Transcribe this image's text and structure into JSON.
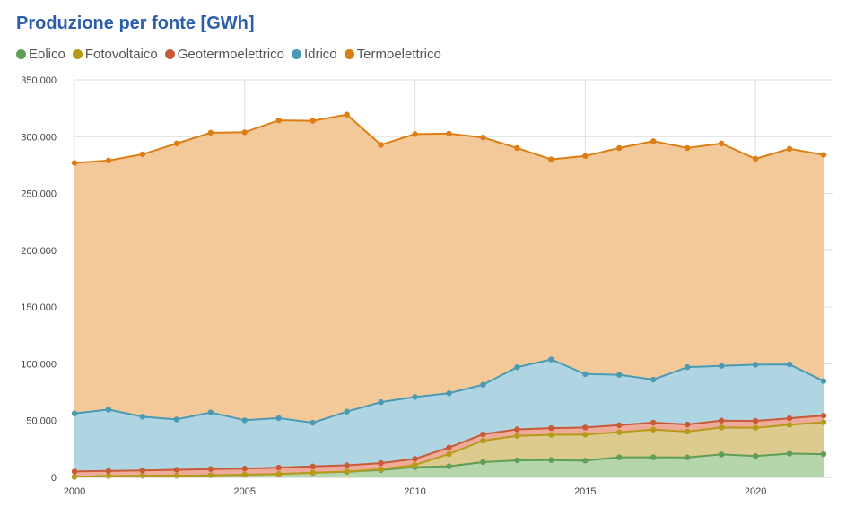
{
  "chart_data": {
    "type": "area",
    "stacked": true,
    "title": "Produzione per fonte [GWh]",
    "xlabel": "",
    "ylabel": "",
    "ylim": [
      0,
      350000
    ],
    "yticks": [
      "0",
      "50,000",
      "100,000",
      "150,000",
      "200,000",
      "250,000",
      "300,000",
      "350,000"
    ],
    "ytick_values": [
      0,
      50000,
      100000,
      150000,
      200000,
      250000,
      300000,
      350000
    ],
    "xlim": [
      2000,
      2022
    ],
    "xticks": [
      "2000",
      "2005",
      "2010",
      "2015",
      "2020"
    ],
    "xtick_values": [
      2000,
      2005,
      2010,
      2015,
      2020
    ],
    "grid": true,
    "legend_position": "top-left",
    "x": [
      2000,
      2001,
      2002,
      2003,
      2004,
      2005,
      2006,
      2007,
      2008,
      2009,
      2010,
      2011,
      2012,
      2013,
      2014,
      2015,
      2016,
      2017,
      2018,
      2019,
      2020,
      2021,
      2022
    ],
    "series": [
      {
        "name": "Eolico",
        "line_color": "#5e9e57",
        "fill_color": "#b5d5ab",
        "cumulative": [
          500,
          1200,
          1400,
          1400,
          1800,
          2300,
          3000,
          4000,
          4900,
          6500,
          9000,
          9800,
          13400,
          15000,
          15200,
          14800,
          17700,
          17700,
          17600,
          20200,
          18800,
          20900,
          20500
        ]
      },
      {
        "name": "Fotovoltaico",
        "line_color": "#b89a19",
        "fill_color": "#dcca8e",
        "cumulative": [
          500,
          1200,
          1400,
          1400,
          1800,
          2300,
          3000,
          4000,
          5100,
          7200,
          10900,
          20600,
          32400,
          36600,
          37500,
          37700,
          39800,
          42100,
          40400,
          43900,
          43700,
          46300,
          48500
        ]
      },
      {
        "name": "Geotermoelettrico",
        "line_color": "#c95a38",
        "fill_color": "#eeab9a",
        "cumulative": [
          5200,
          5700,
          6100,
          6700,
          7300,
          7700,
          8600,
          9600,
          10700,
          12600,
          16300,
          26300,
          38000,
          42300,
          43400,
          43900,
          46000,
          48200,
          46600,
          50000,
          49700,
          52100,
          54400
        ]
      },
      {
        "name": "Idrico",
        "line_color": "#4b9ab3",
        "fill_color": "#afd5e3",
        "cumulative": [
          56300,
          59700,
          53400,
          51000,
          57200,
          50300,
          52200,
          48100,
          57900,
          66300,
          70800,
          74100,
          81600,
          97000,
          103800,
          91000,
          90400,
          86100,
          97100,
          98200,
          99200,
          99500,
          84800
        ]
      },
      {
        "name": "Termoelettrico",
        "line_color": "#dc7e14",
        "fill_color": "#f3c999",
        "cumulative": [
          276900,
          279000,
          284500,
          294000,
          303500,
          303900,
          314400,
          314000,
          319400,
          292800,
          302300,
          302700,
          299300,
          290000,
          280000,
          283000,
          290000,
          296000,
          290000,
          294000,
          280500,
          289300,
          284000
        ]
      }
    ]
  }
}
